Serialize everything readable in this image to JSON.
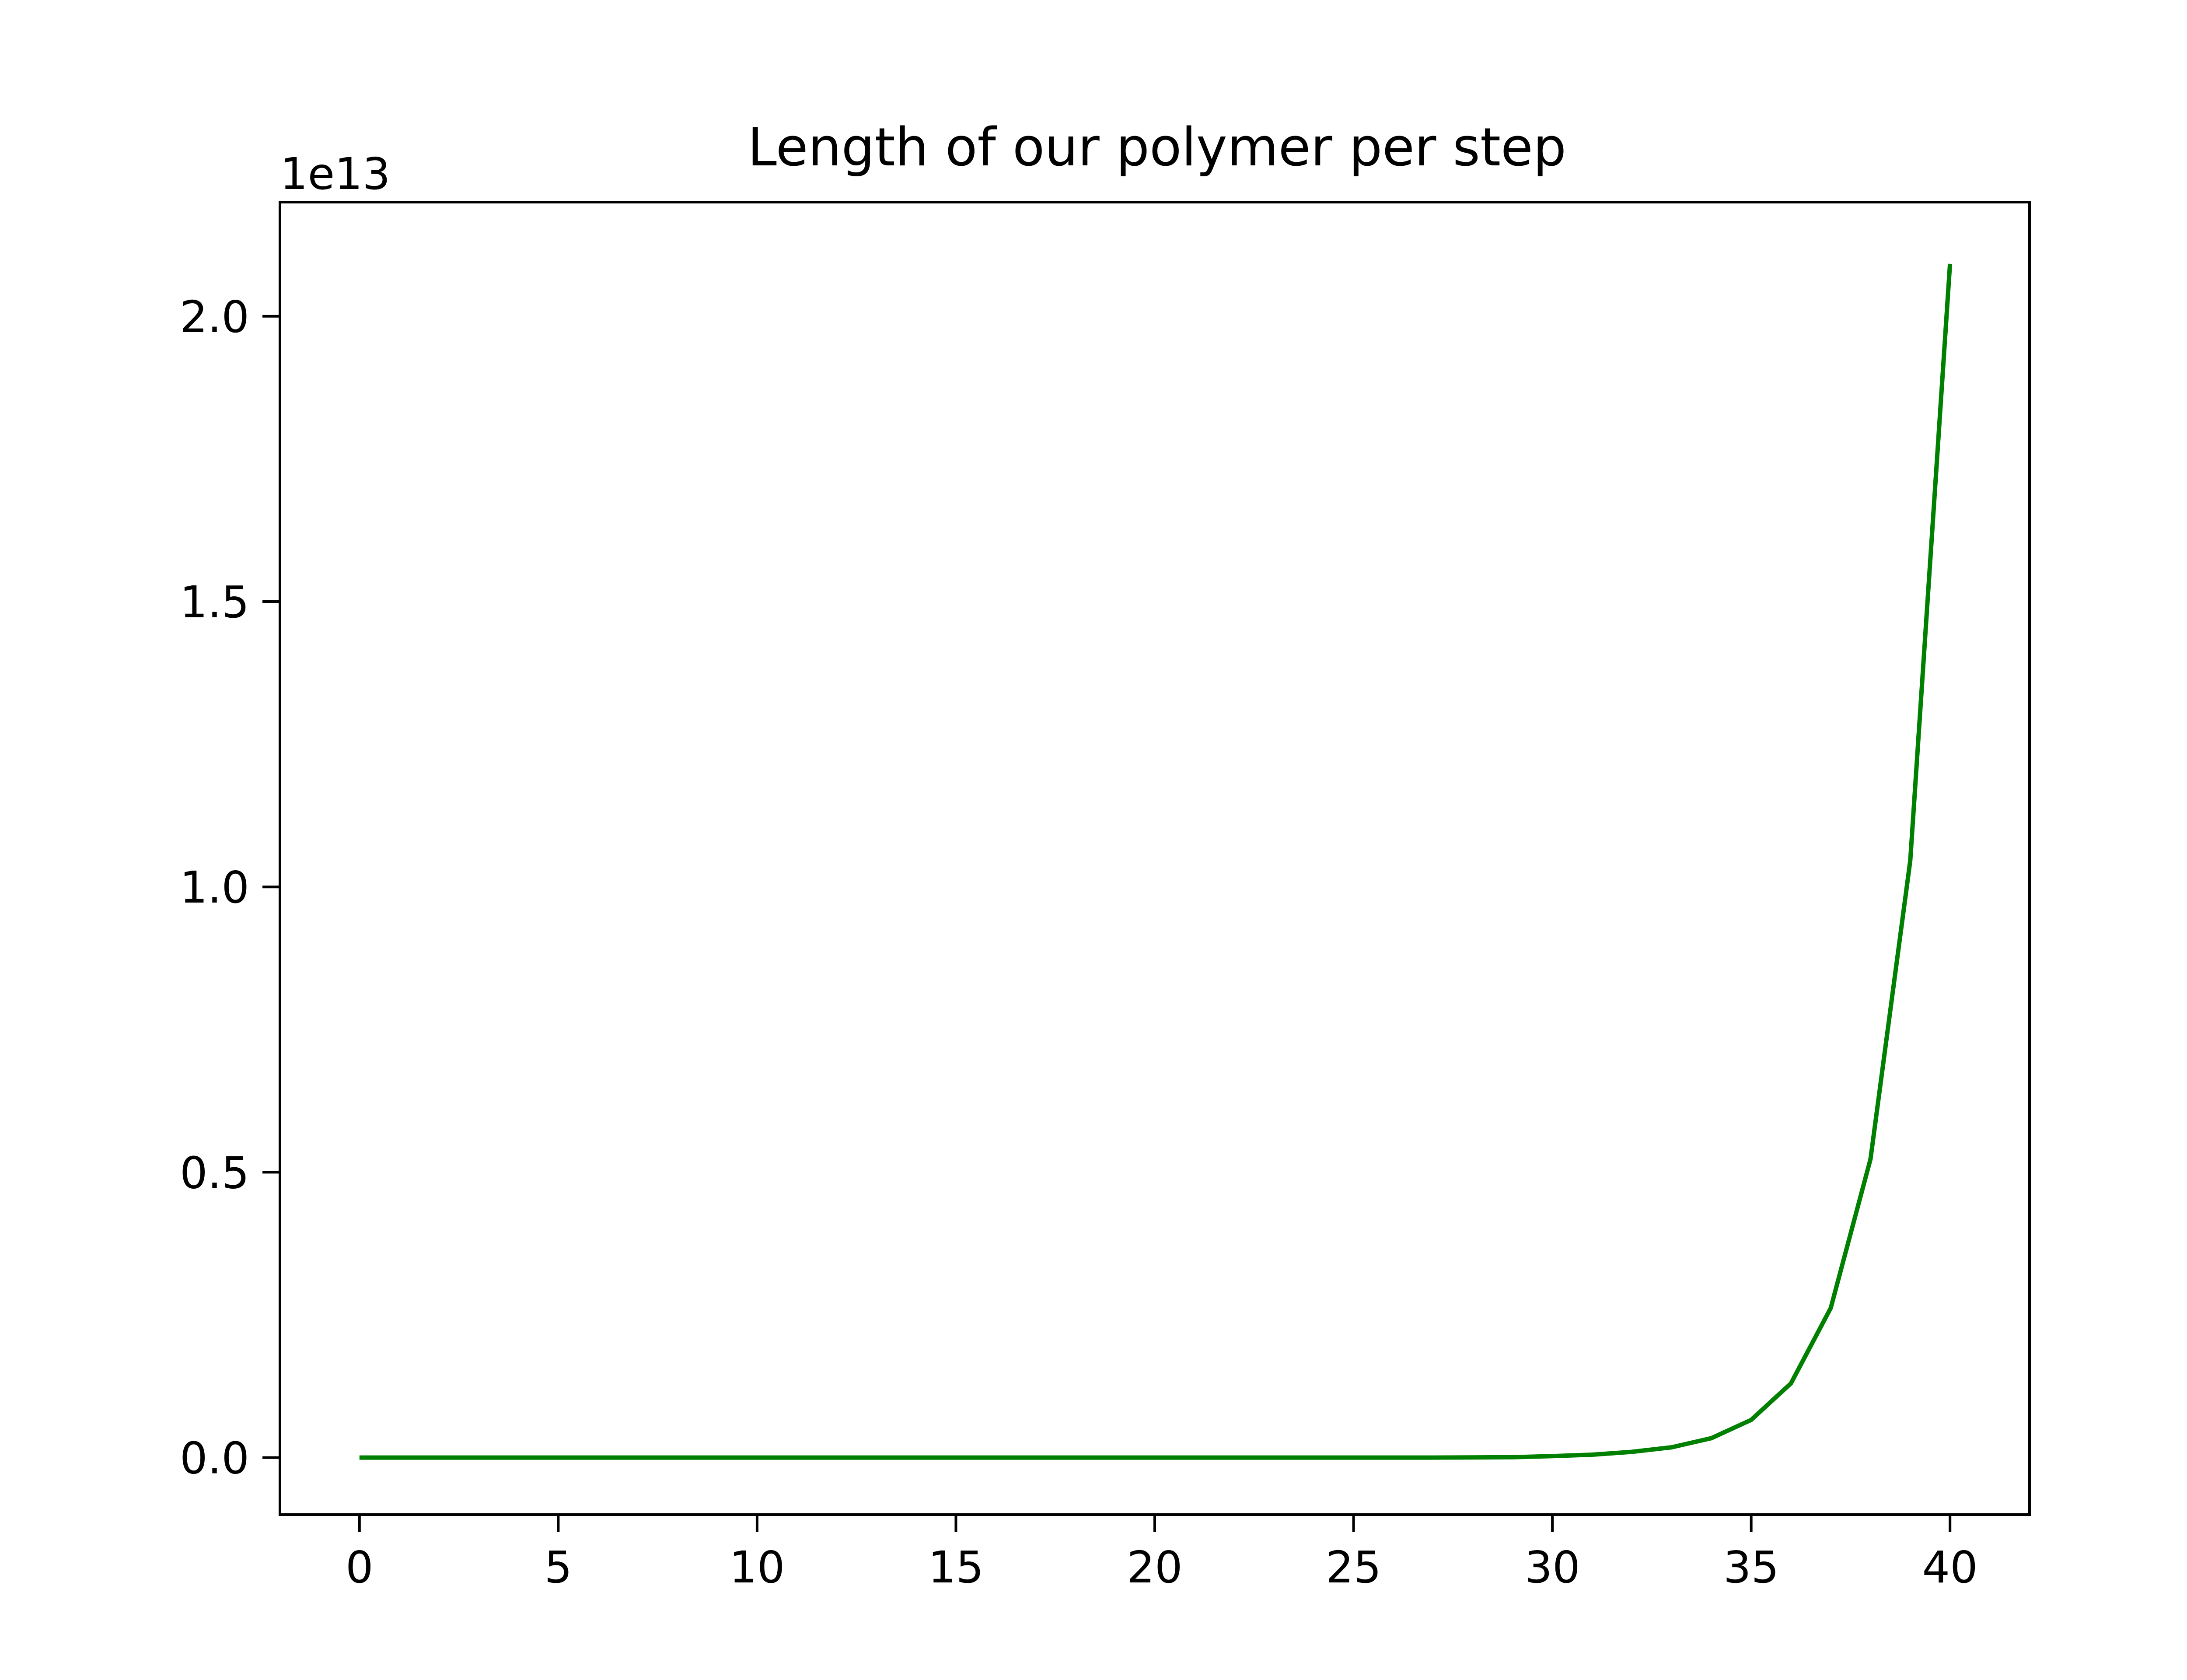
{
  "chart_data": {
    "type": "line",
    "title": "Length of our polymer per step",
    "xlabel": "",
    "ylabel": "",
    "y_offset_label": "1e13",
    "y_scale": 10000000000000.0,
    "xlim": [
      -2,
      42
    ],
    "ylim": [
      -0.1,
      2.2
    ],
    "x_ticks": [
      0,
      5,
      10,
      15,
      20,
      25,
      30,
      35,
      40
    ],
    "x_tick_labels": [
      "0",
      "5",
      "10",
      "15",
      "20",
      "25",
      "30",
      "35",
      "40"
    ],
    "y_ticks": [
      0.0,
      0.5,
      1.0,
      1.5,
      2.0
    ],
    "y_tick_labels": [
      "0.0",
      "0.5",
      "1.0",
      "1.5",
      "2.0"
    ],
    "grid": false,
    "series": [
      {
        "color": "#008000",
        "x": [
          0,
          1,
          2,
          3,
          4,
          5,
          6,
          7,
          8,
          9,
          10,
          11,
          12,
          13,
          14,
          15,
          16,
          17,
          18,
          19,
          20,
          21,
          22,
          23,
          24,
          25,
          26,
          27,
          28,
          29,
          30,
          31,
          32,
          33,
          34,
          35,
          36,
          37,
          38,
          39,
          40
        ],
        "y": [
          0,
          0,
          0,
          0,
          0,
          0,
          0,
          0,
          0,
          0,
          0,
          0,
          0,
          0,
          0,
          0,
          0,
          0,
          0,
          0,
          0,
          0,
          0,
          0,
          0,
          0,
          0,
          0,
          0.0003,
          0.0006,
          0.0025,
          0.005,
          0.01,
          0.018,
          0.034,
          0.066,
          0.13,
          0.262,
          0.523,
          1.046,
          2.092
        ]
      }
    ]
  }
}
